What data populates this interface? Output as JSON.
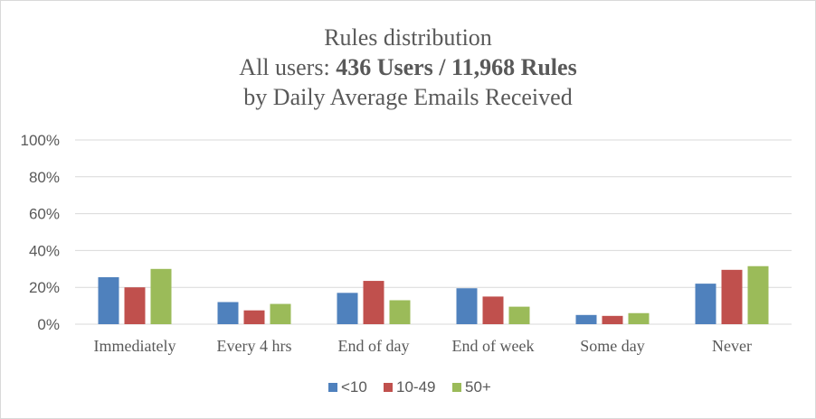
{
  "chart_data": {
    "type": "bar",
    "title": {
      "line1": "Rules distribution",
      "line2_prefix": "All users: ",
      "line2_bold": "436 Users / 11,968 Rules",
      "line3": "by Daily Average Emails Received"
    },
    "categories": [
      "Immediately",
      "Every 4 hrs",
      "End of day",
      "End of week",
      "Some day",
      "Never"
    ],
    "series": [
      {
        "name": "<10",
        "color": "#4f81bd",
        "values": [
          25.5,
          12,
          17,
          19.5,
          5,
          22
        ]
      },
      {
        "name": "10-49",
        "color": "#c0504d",
        "values": [
          20,
          7.5,
          23.5,
          15,
          4.5,
          29.5
        ]
      },
      {
        "name": "50+",
        "color": "#9bbb59",
        "values": [
          30,
          11,
          13,
          9.5,
          6,
          31.5
        ]
      }
    ],
    "ylim": [
      0,
      100
    ],
    "yticks": [
      "0%",
      "20%",
      "40%",
      "60%",
      "80%",
      "100%"
    ],
    "grid": true,
    "legend_position": "bottom"
  }
}
